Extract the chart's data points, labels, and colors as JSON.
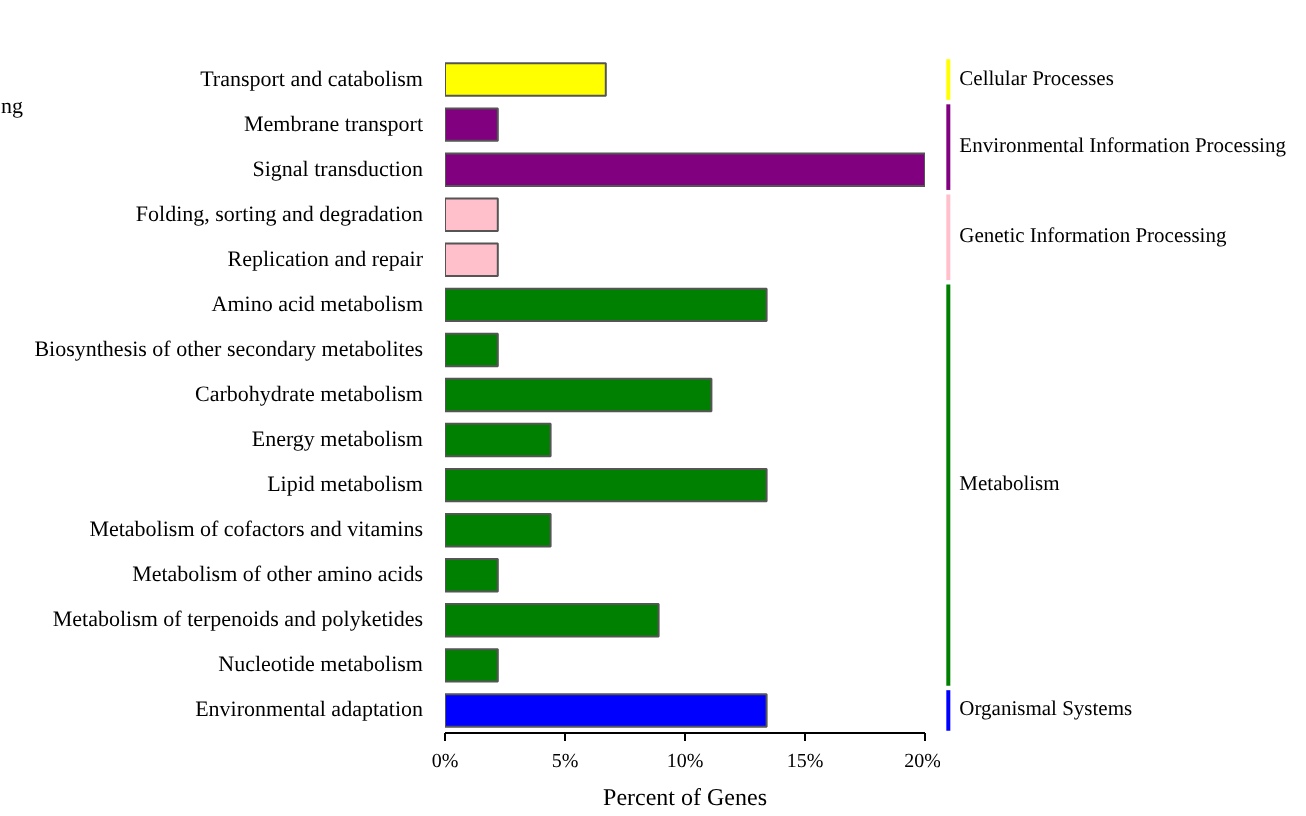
{
  "chart_data": {
    "type": "bar",
    "orientation": "horizontal",
    "xlabel": "Percent of Genes",
    "categories": [
      "Transport and catabolism",
      "Membrane transport",
      "Signal transduction",
      "Folding, sorting and degradation",
      "Replication and repair",
      "Amino acid metabolism",
      "Biosynthesis of other secondary metabolites",
      "Carbohydrate metabolism",
      "Energy metabolism",
      "Lipid metabolism",
      "Metabolism of cofactors and vitamins",
      "Metabolism of other amino acids",
      "Metabolism of terpenoids and polyketides",
      "Nucleotide metabolism",
      "Environmental adaptation"
    ],
    "series": [
      {
        "name": "Cellular Processes",
        "color": "#ffff00",
        "values": [
          6.7,
          null,
          null,
          null,
          null,
          null,
          null,
          null,
          null,
          null,
          null,
          null,
          null,
          null,
          null
        ]
      },
      {
        "name": "Environmental Information Processing",
        "color": "#800080",
        "values": [
          null,
          2.2,
          20,
          null,
          null,
          null,
          null,
          null,
          null,
          null,
          null,
          null,
          null,
          null,
          null
        ]
      },
      {
        "name": "Genetic Information Processing",
        "color": "#ffc0cb",
        "values": [
          null,
          null,
          null,
          2.2,
          2.2,
          null,
          null,
          null,
          null,
          null,
          null,
          null,
          null,
          null,
          null
        ]
      },
      {
        "name": "Metabolism",
        "color": "#008000",
        "values": [
          null,
          null,
          null,
          null,
          null,
          13.4,
          2.2,
          11.1,
          4.4,
          13.4,
          4.4,
          2.2,
          8.9,
          2.2,
          null
        ]
      },
      {
        "name": "Organismal Systems",
        "color": "#0000ff",
        "values": [
          null,
          null,
          null,
          null,
          null,
          null,
          null,
          null,
          null,
          null,
          null,
          null,
          null,
          null,
          13.4
        ]
      }
    ],
    "xlim": [
      0,
      20
    ],
    "xticks": [
      {
        "value": 0,
        "label": "0%"
      },
      {
        "value": 5,
        "label": "5%"
      },
      {
        "value": 10,
        "label": "10%"
      },
      {
        "value": 15,
        "label": "15%"
      },
      {
        "value": 20,
        "label": "20%"
      }
    ],
    "annotations": [
      "ng"
    ],
    "grid": false,
    "legend": "right"
  }
}
